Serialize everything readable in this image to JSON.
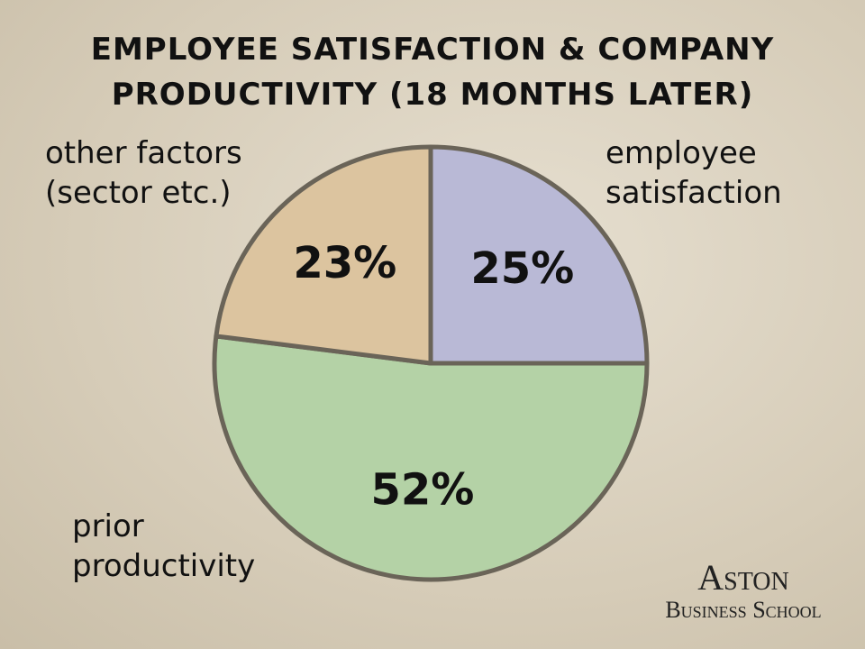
{
  "chart_data": {
    "type": "pie",
    "title": "EMPLOYEE SATISFACTION & COMPANY PRODUCTIVITY (18 MONTHS LATER)",
    "categories": [
      "employee satisfaction",
      "prior productivity",
      "other factors (sector etc.)"
    ],
    "values": [
      25,
      52,
      23
    ],
    "value_labels": [
      "25%",
      "52%",
      "23%"
    ],
    "colors": [
      "#b9b9d6",
      "#b4d2a6",
      "#dcc49f"
    ]
  },
  "logo": {
    "line1": "Aston",
    "line2": "Business School"
  }
}
